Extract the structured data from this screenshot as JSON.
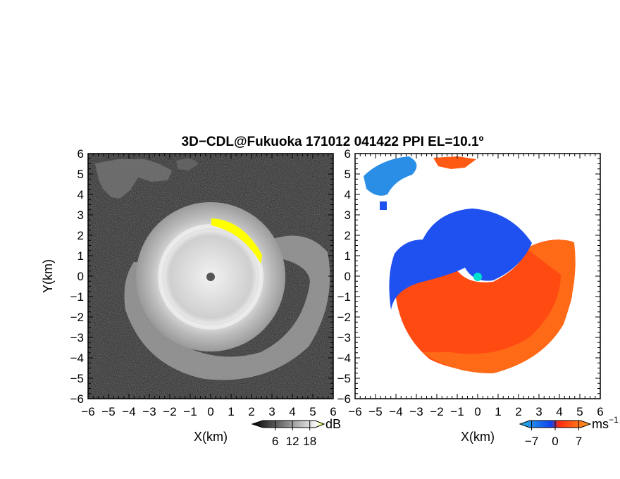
{
  "figure": {
    "title": "3D−CDL@Fukuoka 171012 041422 PPI EL=10.1º"
  },
  "chart_data": [
    {
      "type": "heatmap",
      "panel": "left",
      "quantity": "SNR",
      "xlabel": "X(km)",
      "ylabel": "Y(km)",
      "xlim": [
        -6,
        6
      ],
      "ylim": [
        -6,
        6
      ],
      "x_ticks": [
        "−6",
        "−5",
        "−4",
        "−3",
        "−2",
        "−1",
        "0",
        "1",
        "2",
        "3",
        "4",
        "5",
        "6"
      ],
      "y_ticks": [
        "6",
        "5",
        "4",
        "3",
        "2",
        "1",
        "0",
        "−1",
        "−2",
        "−3",
        "−4",
        "−5",
        "−6"
      ],
      "colorbar": {
        "label": "dB",
        "ticks": [
          "6",
          "12",
          "18"
        ],
        "range": [
          0,
          21
        ]
      },
      "colors": {
        "background": "#1c1c1c",
        "signal": "#d0d0d0",
        "highlight": "#ffff00",
        "center": "#555555"
      }
    },
    {
      "type": "heatmap",
      "panel": "right",
      "quantity": "Doppler velocity",
      "xlabel": "X(km)",
      "ylabel": "",
      "xlim": [
        -6,
        6
      ],
      "ylim": [
        -6,
        6
      ],
      "x_ticks": [
        "−6",
        "−5",
        "−4",
        "−3",
        "−2",
        "−1",
        "0",
        "1",
        "2",
        "3",
        "4",
        "5",
        "6"
      ],
      "y_ticks": [
        "6",
        "5",
        "4",
        "3",
        "2",
        "1",
        "0",
        "−1",
        "−2",
        "−3",
        "−4",
        "−5",
        "−6"
      ],
      "colorbar": {
        "label": "ms",
        "label_sup": "−1",
        "ticks": [
          "−7",
          "0",
          "7"
        ],
        "range": [
          -9,
          9
        ]
      },
      "colors": {
        "toward": "#1a55f0",
        "away": "#ff3c10",
        "far_toward": "#2aa0e8",
        "far_away": "#ff7a1a",
        "center": "#00e0d0"
      }
    }
  ]
}
